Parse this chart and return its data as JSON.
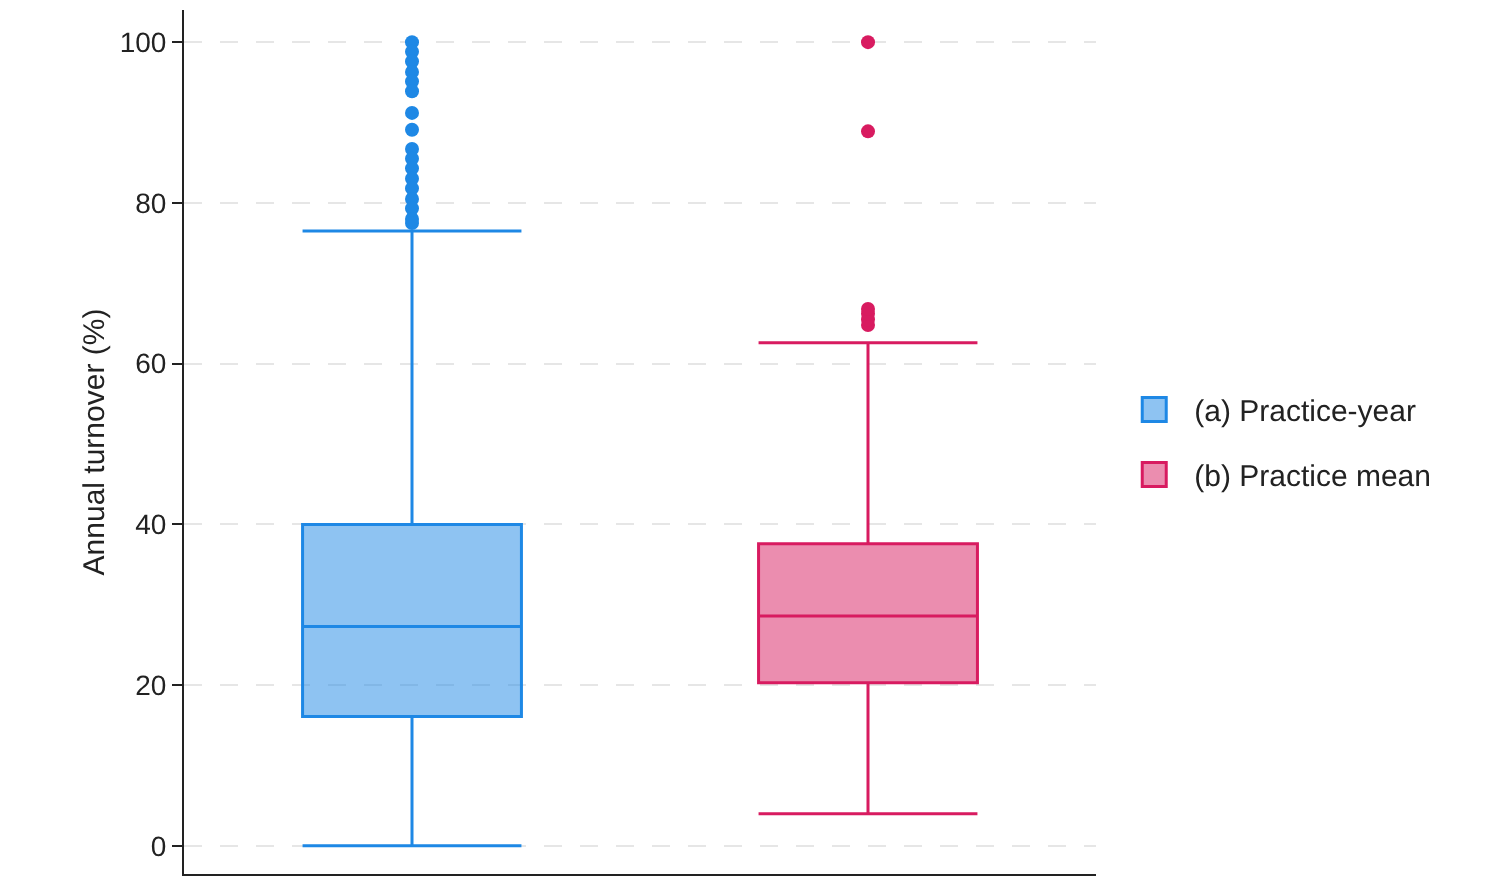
{
  "chart_data": {
    "type": "box",
    "ylabel": "Annual turnover (%)",
    "categories": [
      null,
      null
    ],
    "ylim": [
      -3.5,
      104
    ],
    "yticks": [
      0,
      20,
      40,
      60,
      80,
      100
    ],
    "grid": "y",
    "legend": "right",
    "tick_labels": "y",
    "series": [
      {
        "name": "(a) Practice-year",
        "color": "#1e88e5",
        "boxes": [
          {
            "low": 0,
            "q1": 16.1,
            "median": 27.3,
            "q3": 40,
            "high": 76.5,
            "outliers": [
              100,
              98.8,
              97.6,
              96.3,
              95.1,
              93.9,
              91.2,
              89.1,
              86.7,
              85.5,
              84.3,
              83,
              81.8,
              80.5,
              79.3,
              78,
              77.5
            ]
          },
          null
        ]
      },
      {
        "name": "(b) Practice mean",
        "color": "#d81b60",
        "boxes": [
          null,
          {
            "low": 4,
            "q1": 20.3,
            "median": 28.6,
            "q3": 37.6,
            "high": 62.6,
            "outliers": [
              100,
              88.9,
              64.8,
              65.5,
              66.2,
              66.8
            ]
          }
        ]
      }
    ]
  }
}
